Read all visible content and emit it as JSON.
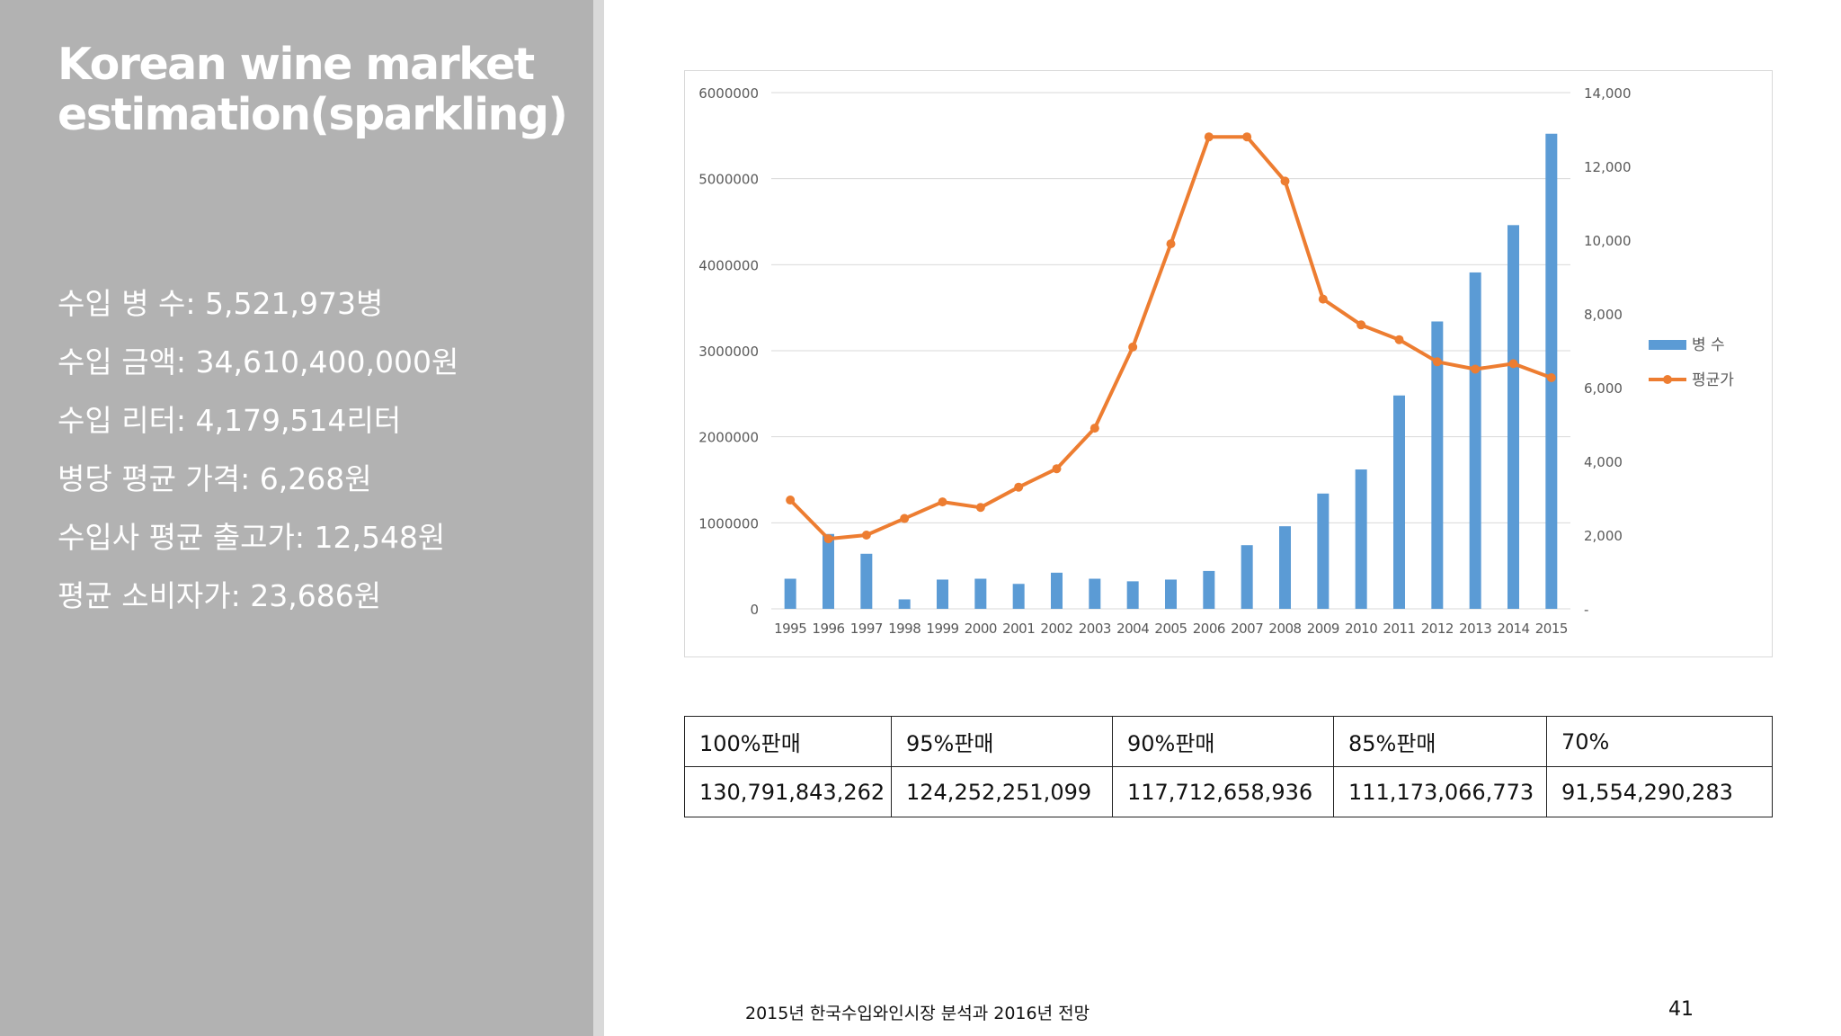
{
  "title": "Korean wine market estimation(sparkling)",
  "stats": [
    "수입 병 수: 5,521,973병",
    "수입 금액: 34,610,400,000원",
    "수입 리터: 4,179,514리터",
    "병당 평균 가격: 6,268원",
    "수입사 평균 출고가: 12,548원",
    "평균 소비자가: 23,686원"
  ],
  "chart_data": {
    "type": "bar+line",
    "categories": [
      "1995",
      "1996",
      "1997",
      "1998",
      "1999",
      "2000",
      "2001",
      "2002",
      "2003",
      "2004",
      "2005",
      "2006",
      "2007",
      "2008",
      "2009",
      "2010",
      "2011",
      "2012",
      "2013",
      "2014",
      "2015"
    ],
    "series": [
      {
        "name": "병 수",
        "type": "bar",
        "axis": "left",
        "color": "#5b9bd5",
        "values": [
          350000,
          870000,
          640000,
          110000,
          340000,
          350000,
          290000,
          420000,
          350000,
          320000,
          340000,
          440000,
          740000,
          960000,
          1340000,
          1620000,
          2480000,
          3340000,
          3910000,
          4460000,
          5521973
        ]
      },
      {
        "name": "평균가",
        "type": "line",
        "axis": "right",
        "color": "#ed7d31",
        "values": [
          2950,
          1900,
          2000,
          2450,
          2900,
          2750,
          3300,
          3800,
          4900,
          7100,
          9900,
          12800,
          12800,
          11600,
          8400,
          7700,
          7300,
          6700,
          6500,
          6650,
          6268
        ]
      }
    ],
    "y_left": {
      "min": 0,
      "max": 6000000,
      "ticks": [
        "0",
        "1000000",
        "2000000",
        "3000000",
        "4000000",
        "5000000",
        "6000000"
      ]
    },
    "y_right": {
      "min": 0,
      "max": 14000,
      "ticks": [
        "-",
        "2,000",
        "4,000",
        "6,000",
        "8,000",
        "10,000",
        "12,000",
        "14,000"
      ]
    },
    "grid": true,
    "legend_position": "right"
  },
  "table": {
    "headers": [
      "100%판매",
      "95%판매",
      "90%판매",
      "85%판매",
      "70%"
    ],
    "values": [
      "130,791,843,262",
      "124,252,251,099",
      "117,712,658,936",
      "111,173,066,773",
      "91,554,290,283"
    ]
  },
  "footer": "2015년 한국수입와인시장 분석과 2016년 전망",
  "page_number": "41"
}
